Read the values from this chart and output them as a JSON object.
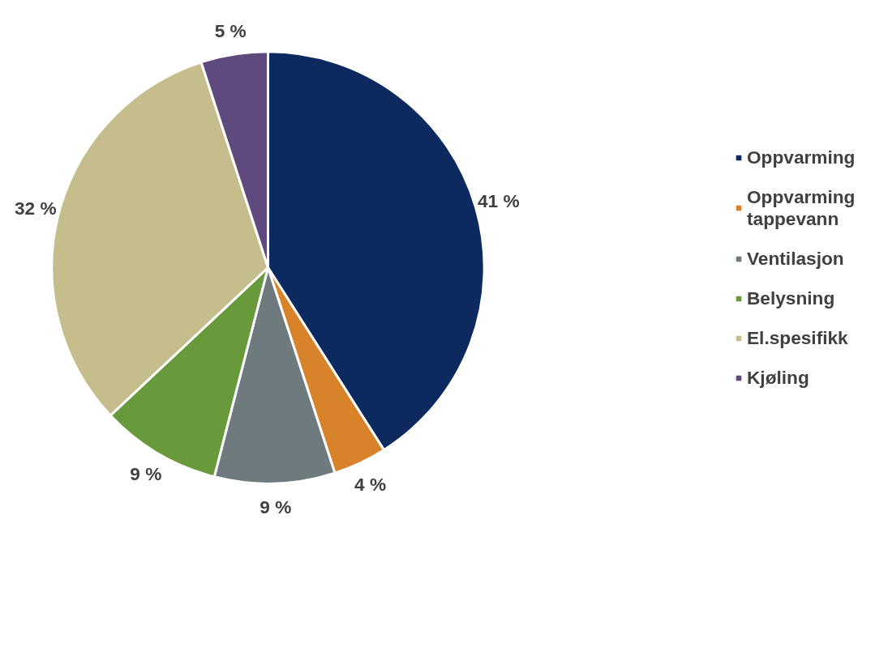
{
  "chart_data": {
    "type": "pie",
    "categories": [
      "Oppvarming",
      "Oppvarming tappevann",
      "Ventilasjon",
      "Belysning",
      "El.spesifikk",
      "Kjøling"
    ],
    "values": [
      41,
      4,
      9,
      9,
      32,
      5
    ],
    "colors": [
      "#0c2a5f",
      "#d8822a",
      "#6e7a7e",
      "#689a3b",
      "#c6bd8c",
      "#5f4a7e"
    ],
    "value_labels": [
      "41 %",
      "4 %",
      "9 %",
      "9 %",
      "32 %",
      "5 %"
    ],
    "legend": "right"
  }
}
